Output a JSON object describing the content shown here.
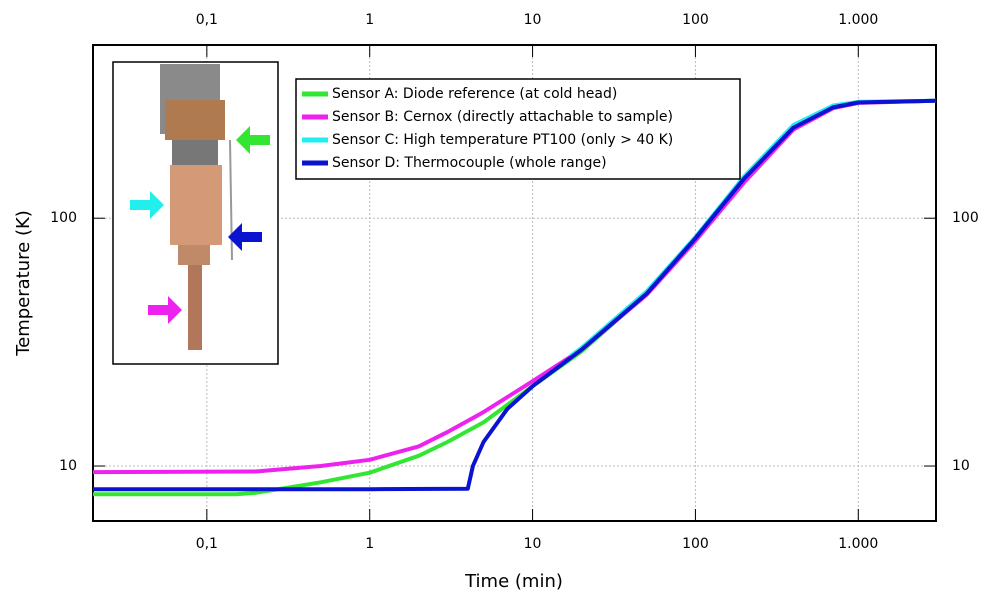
{
  "chart_data": {
    "type": "line",
    "x_label": "Time (min)",
    "y_label": "Temperature (K)",
    "log_x": true,
    "log_y": true,
    "grid": true,
    "xlim": [
      0.02,
      3000
    ],
    "ylim": [
      6,
      500
    ],
    "xticks": [
      {
        "value": 0.1,
        "label": "0,1"
      },
      1,
      10,
      100,
      {
        "value": 1000,
        "label": "1.000"
      }
    ],
    "yticks": [
      10,
      100
    ],
    "series": [
      {
        "name": "Sensor A: Diode reference (at cold head)",
        "color": "#33e633",
        "x": [
          0.02,
          0.15,
          0.2,
          0.5,
          1,
          2,
          3,
          5,
          10,
          20,
          50,
          100,
          200,
          400,
          700,
          1000,
          3000
        ],
        "values": [
          7.7,
          7.7,
          7.8,
          8.6,
          9.4,
          11.0,
          12.5,
          15.0,
          21.0,
          29.0,
          49.5,
          83,
          145,
          232,
          280,
          293,
          298
        ]
      },
      {
        "name": "Sensor B: Cernox (directly attachable to sample)",
        "color": "#ee22ee",
        "x": [
          0.02,
          0.2,
          0.5,
          1,
          2,
          3,
          5,
          10,
          20,
          50,
          100,
          200,
          400,
          700,
          1000,
          3000
        ],
        "values": [
          9.45,
          9.5,
          10.0,
          10.6,
          12.0,
          13.7,
          16.5,
          22.0,
          29.5,
          49.0,
          81,
          140,
          228,
          278,
          292,
          298
        ]
      },
      {
        "name": "Sensor C: High temperature PT100 (only > 40 K)",
        "color": "#22eeee",
        "x": [
          17,
          20,
          50,
          100,
          200,
          400,
          700,
          1000,
          3000
        ],
        "values": [
          27.7,
          30.0,
          50.5,
          84,
          148,
          238,
          285,
          295,
          298
        ]
      },
      {
        "name": "Sensor D: Thermocouple (whole range)",
        "color": "#0a14d0",
        "x": [
          0.02,
          1,
          4,
          4.3,
          5,
          7,
          10,
          20,
          50,
          100,
          200,
          400,
          700,
          1000,
          3000
        ],
        "values": [
          8.06,
          8.06,
          8.1,
          10.0,
          12.5,
          17.0,
          21.0,
          29.5,
          49.5,
          83,
          145,
          232,
          280,
          293,
          298
        ]
      }
    ]
  }
}
